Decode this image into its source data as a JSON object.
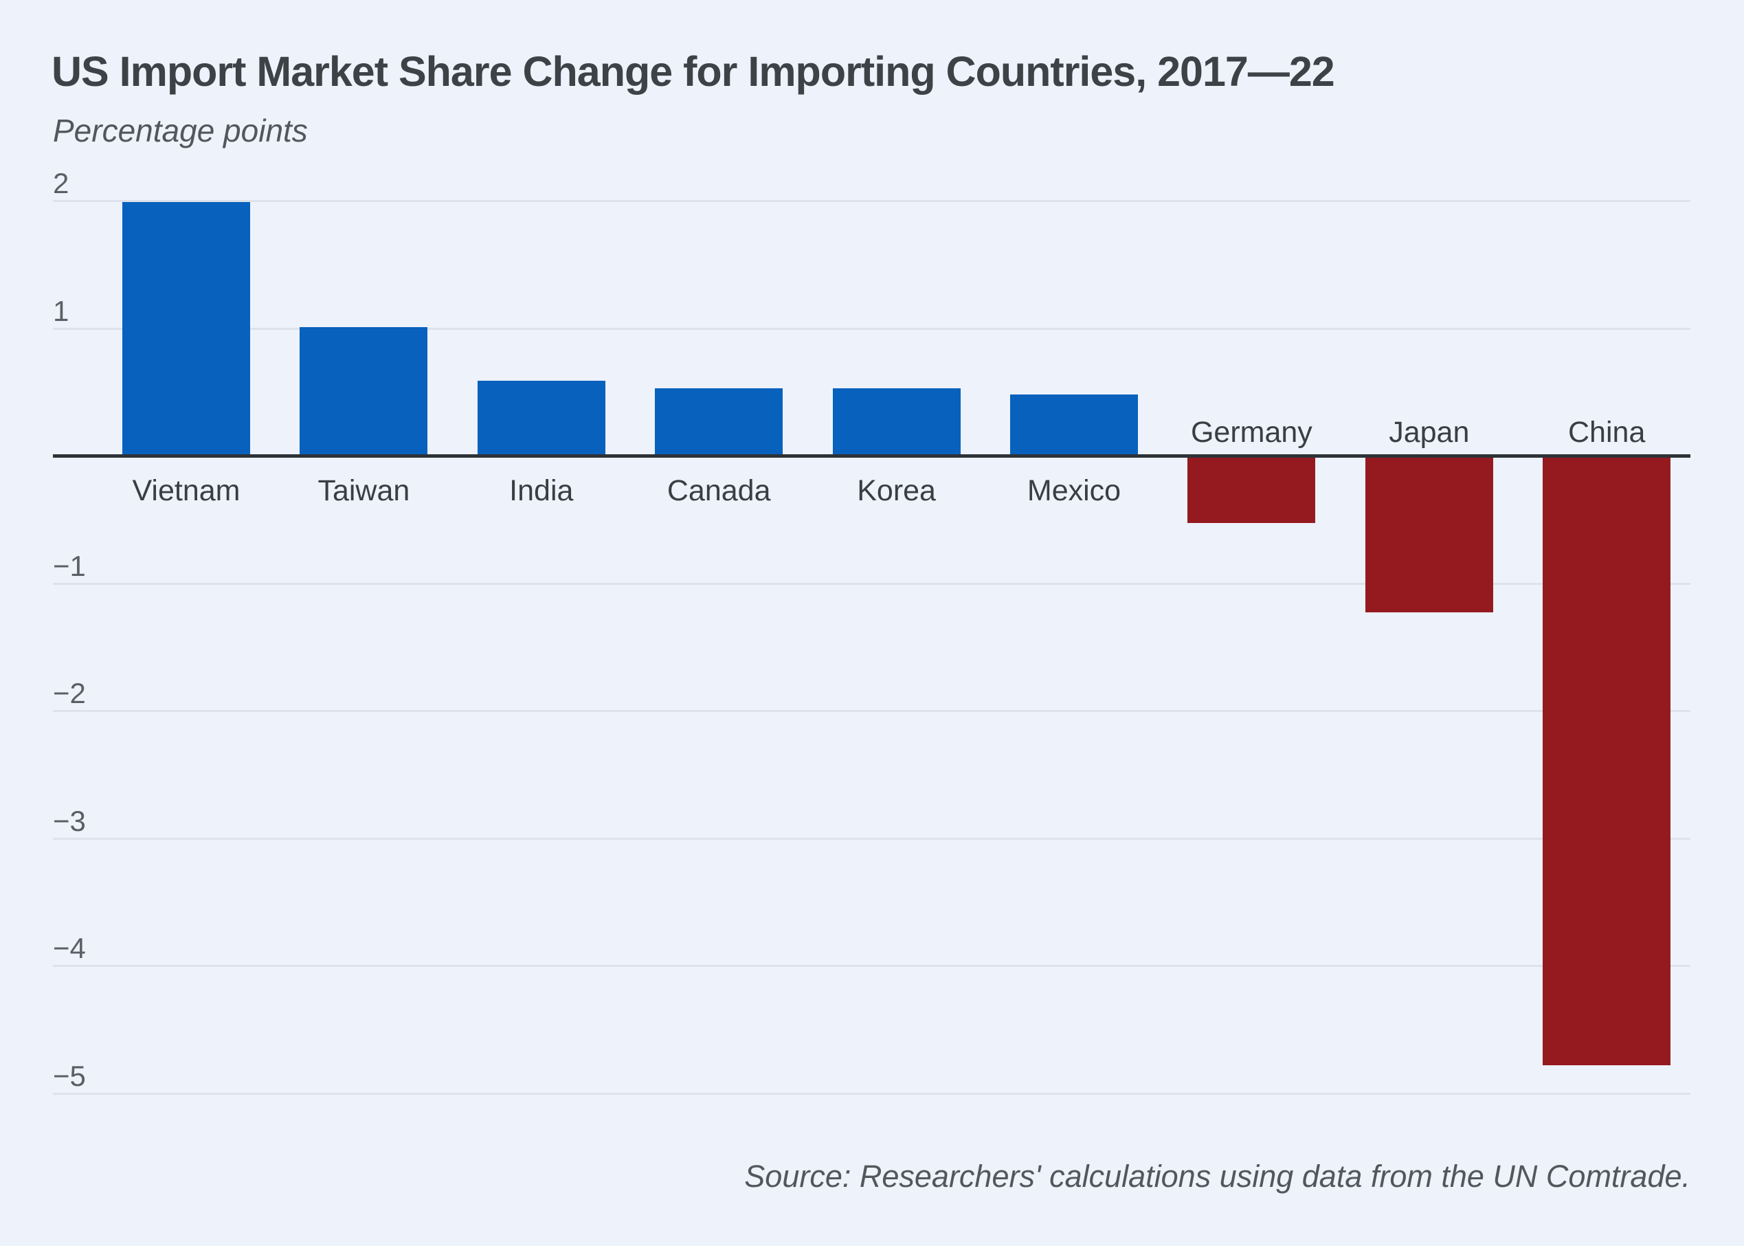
{
  "page": {
    "background": "#EDF2FB"
  },
  "chart": {
    "title": "US Import Market Share Change for Importing Countries, 2017—22",
    "unit_label": "Percentage points",
    "source": "Source: Researchers' calculations using data from the UN Comtrade."
  },
  "chart_data": {
    "type": "bar",
    "title": "US Import Market Share Change for Importing Countries, 2017—22",
    "subtitle": "Percentage points",
    "categories": [
      "Vietnam",
      "Taiwan",
      "India",
      "Canada",
      "Korea",
      "Mexico",
      "Germany",
      "Japan",
      "China"
    ],
    "values": [
      1.99,
      1.01,
      0.59,
      0.53,
      0.53,
      0.48,
      -0.53,
      -1.23,
      -4.78
    ],
    "xlabel": "",
    "ylabel": "Percentage points",
    "ylim": [
      -5.4,
      2.3
    ],
    "yticks": [
      2,
      1,
      -1,
      -2,
      -3,
      -4,
      -5
    ],
    "grid": true,
    "legend": "none",
    "baseline": 0,
    "positive_color": "#0761BD",
    "negative_color": "#951A20",
    "gridline_color": "#DDE2EB",
    "axis_color": "#2E3236",
    "source": "Source: Researchers' calculations using data from the UN Comtrade."
  }
}
